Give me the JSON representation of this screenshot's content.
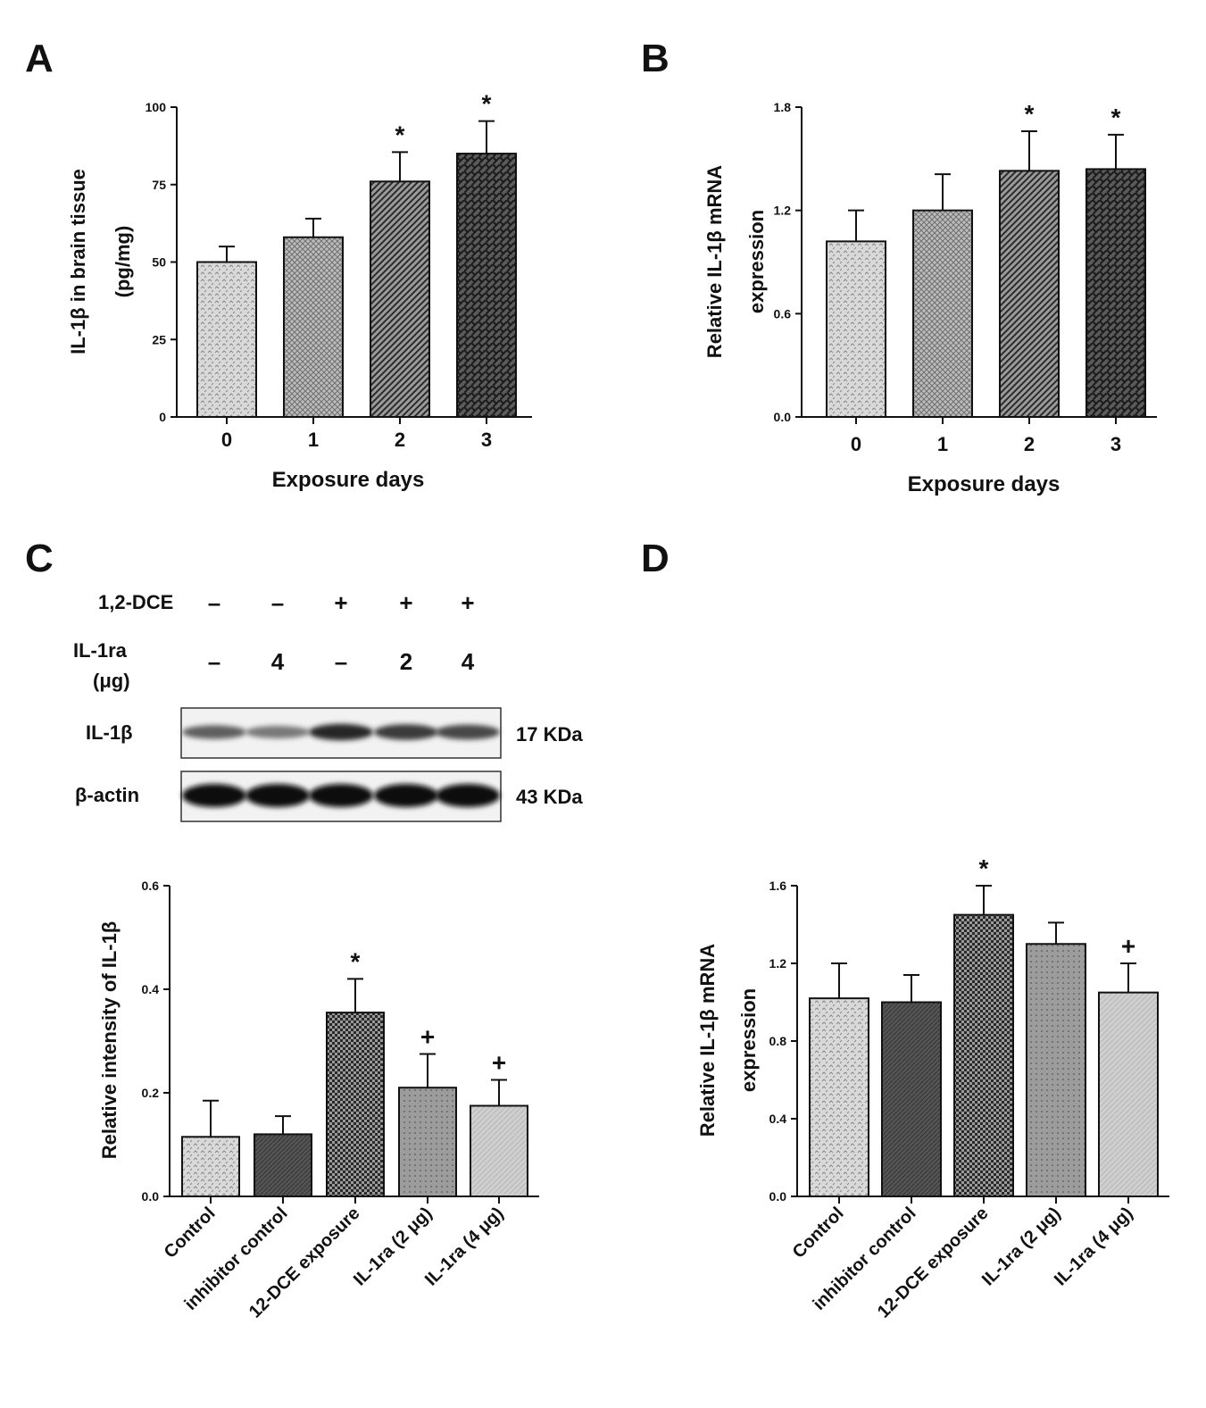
{
  "chart_data": [
    {
      "panel": "A",
      "type": "bar",
      "title": "",
      "xlabel": "Exposure days",
      "ylabel": [
        "IL-1β in brain tissue",
        "(pg/mg)"
      ],
      "categories": [
        "0",
        "1",
        "2",
        "3"
      ],
      "values": [
        50,
        58,
        76,
        85
      ],
      "errors": [
        5,
        6,
        9.5,
        10.5
      ],
      "annotations": [
        "",
        "",
        "*",
        "*"
      ],
      "ylim": [
        0,
        100
      ],
      "yticks": [
        "0",
        "25",
        "50",
        "75",
        "100"
      ],
      "ytick_values": [
        0,
        25,
        50,
        75,
        100
      ]
    },
    {
      "panel": "B",
      "type": "bar",
      "title": "",
      "xlabel": "Exposure days",
      "ylabel": [
        "Relative IL-1β mRNA",
        "expression"
      ],
      "categories": [
        "0",
        "1",
        "2",
        "3"
      ],
      "values": [
        1.02,
        1.2,
        1.43,
        1.44
      ],
      "errors": [
        0.18,
        0.21,
        0.23,
        0.2
      ],
      "annotations": [
        "",
        "",
        "*",
        "*"
      ],
      "ylim": [
        0,
        1.8
      ],
      "yticks": [
        "0.0",
        "0.6",
        "1.2",
        "1.8"
      ],
      "ytick_values": [
        0,
        0.6,
        1.2,
        1.8
      ]
    },
    {
      "panel": "C",
      "type": "bar",
      "title": "",
      "xlabel": "",
      "ylabel": [
        "Relative intensity of IL-1β"
      ],
      "categories": [
        "Control",
        "inhibitor control",
        "12-DCE exposure",
        "IL-1ra (2 μg)",
        "IL-1ra (4 μg)"
      ],
      "values": [
        0.115,
        0.12,
        0.355,
        0.21,
        0.175
      ],
      "errors": [
        0.07,
        0.035,
        0.065,
        0.065,
        0.05
      ],
      "annotations": [
        "",
        "",
        "*",
        "+",
        "+"
      ],
      "ylim": [
        0,
        0.6
      ],
      "yticks": [
        "0.0",
        "0.2",
        "0.4",
        "0.6"
      ],
      "ytick_values": [
        0,
        0.2,
        0.4,
        0.6
      ]
    },
    {
      "panel": "D",
      "type": "bar",
      "title": "",
      "xlabel": "",
      "ylabel": [
        "Relative IL-1β mRNA",
        "expression"
      ],
      "categories": [
        "Control",
        "inhibitor control",
        "12-DCE exposure",
        "IL-1ra (2 μg)",
        "IL-1ra (4 μg)"
      ],
      "values": [
        1.02,
        1.0,
        1.45,
        1.3,
        1.05
      ],
      "errors": [
        0.18,
        0.14,
        0.15,
        0.11,
        0.15
      ],
      "annotations": [
        "",
        "",
        "*",
        "",
        "+"
      ],
      "ylim": [
        0,
        1.6
      ],
      "yticks": [
        "0.0",
        "0.4",
        "0.8",
        "1.2",
        "1.6"
      ],
      "ytick_values": [
        0,
        0.4,
        0.8,
        1.2,
        1.6
      ]
    }
  ],
  "panel_labels": [
    "A",
    "B",
    "C",
    "D"
  ],
  "western_blot": {
    "rows": [
      {
        "label": "1,2-DCE",
        "values": [
          "–",
          "–",
          "+",
          "+",
          "+"
        ]
      },
      {
        "label": "IL-1ra",
        "sublabel": "(μg)",
        "values": [
          "–",
          "4",
          "–",
          "2",
          "4"
        ]
      }
    ],
    "bands": [
      {
        "label": "IL-1β",
        "size": "17 KDa",
        "intensity": [
          0.55,
          0.42,
          0.85,
          0.75,
          0.68
        ]
      },
      {
        "label": "β-actin",
        "size": "43 KDa",
        "intensity": [
          1,
          1,
          1,
          1,
          1
        ]
      }
    ]
  }
}
